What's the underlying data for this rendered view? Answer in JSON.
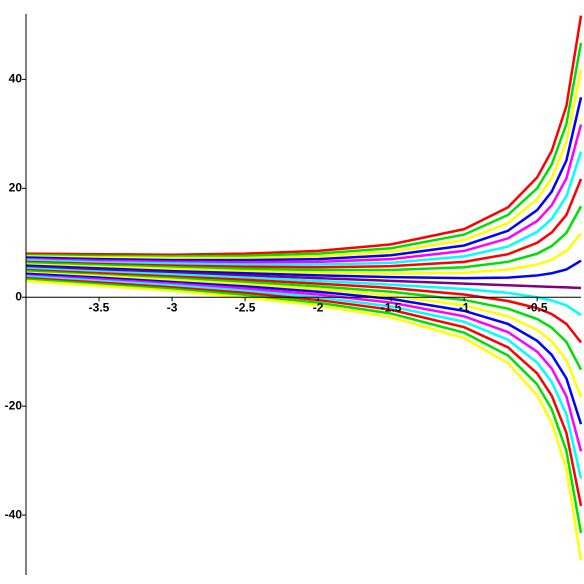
{
  "chart_data": {
    "type": "line",
    "x": [
      -4,
      -3.5,
      -3,
      -2.5,
      -2,
      -1.5,
      -1,
      -0.7,
      -0.5,
      -0.4,
      -0.3,
      -0.2
    ],
    "xlim": [
      -4,
      -0.2
    ],
    "xticks": [
      -3.5,
      -3,
      -2.5,
      -2,
      -1.5,
      -1,
      -0.5
    ],
    "ylim": [
      -51,
      52
    ],
    "yticks": [
      -40,
      -20,
      0,
      20,
      40
    ],
    "series": [
      {
        "color": "#ff0000",
        "values": [
          8,
          7.9,
          7.8,
          8,
          8.5,
          9.7,
          12.5,
          16.5,
          22,
          26.9,
          35.1,
          51.7
        ]
      },
      {
        "color": "#00e000",
        "values": [
          7.75,
          7.57,
          7.5,
          7.6,
          8,
          9,
          11.5,
          15.1,
          20,
          24.4,
          31.8,
          46.7
        ]
      },
      {
        "color": "#ffff00",
        "values": [
          7.5,
          7.3,
          7.2,
          7.2,
          7.5,
          8.3,
          10.5,
          13.6,
          18,
          21.9,
          28.5,
          41.7
        ]
      },
      {
        "color": "#0000ff",
        "values": [
          7.3,
          7,
          6.8,
          6.8,
          7,
          7.7,
          9.5,
          12.2,
          16,
          19.4,
          25.1,
          36.7
        ]
      },
      {
        "color": "#ff00ff",
        "values": [
          7,
          6.7,
          6.5,
          6.4,
          6.5,
          7,
          8.5,
          10.8,
          14,
          16.9,
          21.8,
          31.7
        ]
      },
      {
        "color": "#00ffff",
        "values": [
          6.8,
          6.4,
          6.2,
          6,
          6,
          6.3,
          7.5,
          9.3,
          12,
          14.4,
          18.5,
          26.7
        ]
      },
      {
        "color": "#ff0000",
        "values": [
          6.5,
          6.1,
          5.8,
          5.6,
          5.5,
          5.7,
          6.5,
          7.9,
          10,
          11.9,
          15.1,
          21.7
        ]
      },
      {
        "color": "#00e000",
        "values": [
          6.3,
          5.9,
          5.5,
          5.2,
          5,
          5,
          5.5,
          6.5,
          8,
          9.4,
          11.8,
          16.7
        ]
      },
      {
        "color": "#ffff00",
        "values": [
          6,
          5.6,
          5.2,
          4.8,
          4.5,
          4.3,
          4.5,
          5.1,
          6,
          6.9,
          8.5,
          11.7
        ]
      },
      {
        "color": "#0000ff",
        "values": [
          5.8,
          5.3,
          4.8,
          4.4,
          4,
          3.7,
          3.5,
          3.6,
          4,
          4.4,
          5.1,
          6.7
        ]
      },
      {
        "color": "#800080",
        "values": [
          5.5,
          5,
          4.5,
          4,
          3.5,
          3,
          2.5,
          2.2,
          2,
          1.9,
          1.8,
          1.7
        ]
      },
      {
        "color": "#00ffff",
        "values": [
          5.3,
          4.7,
          4.2,
          3.6,
          3,
          2.3,
          1.5,
          0.8,
          0,
          -0.6,
          -1.5,
          -3.3
        ]
      },
      {
        "color": "#ff0000",
        "values": [
          5,
          4.4,
          3.8,
          3.2,
          2.5,
          1.7,
          0.5,
          -0.7,
          -2,
          -3.1,
          -4.9,
          -8.3
        ]
      },
      {
        "color": "#00e000",
        "values": [
          4.8,
          4.1,
          3.5,
          2.8,
          2,
          1,
          -0.5,
          -2.1,
          -4,
          -5.6,
          -8.2,
          -13.3
        ]
      },
      {
        "color": "#ffff00",
        "values": [
          4.5,
          3.9,
          3.2,
          2.4,
          1.5,
          0.3,
          -1.5,
          -3.5,
          -6,
          -8.1,
          -11.5,
          -18.3
        ]
      },
      {
        "color": "#0000ff",
        "values": [
          4.3,
          3.6,
          2.8,
          2,
          1,
          -0.3,
          -2.5,
          -4.9,
          -8,
          -10.6,
          -14.9,
          -23.3
        ]
      },
      {
        "color": "#ff00ff",
        "values": [
          4,
          3.3,
          2.5,
          1.6,
          0.5,
          -1,
          -3.5,
          -6.4,
          -10,
          -13.1,
          -18.2,
          -28.3
        ]
      },
      {
        "color": "#00ffff",
        "values": [
          3.8,
          3,
          2.2,
          1.2,
          0,
          -1.7,
          -4.5,
          -7.8,
          -12,
          -15.6,
          -21.5,
          -33.3
        ]
      },
      {
        "color": "#ff0000",
        "values": [
          3.5,
          2.7,
          1.8,
          0.8,
          -0.5,
          -2.3,
          -5.5,
          -9.2,
          -14,
          -18.1,
          -24.9,
          -38.3
        ]
      },
      {
        "color": "#00e000",
        "values": [
          3.3,
          2.4,
          1.5,
          0.4,
          -1,
          -3,
          -6.5,
          -10.7,
          -16,
          -20.6,
          -28.2,
          -43.3
        ]
      },
      {
        "color": "#ffff00",
        "values": [
          3,
          2.1,
          1.2,
          0,
          -1.5,
          -3.7,
          -7.5,
          -12.1,
          -18,
          -23.1,
          -31.5,
          -48.3
        ]
      }
    ]
  }
}
